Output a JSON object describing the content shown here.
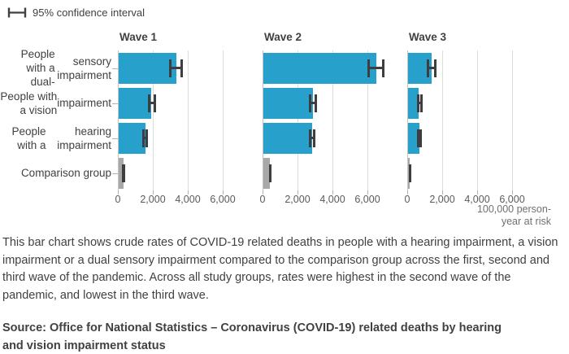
{
  "legend": {
    "label": "95% confidence interval"
  },
  "chart_data": {
    "type": "bar",
    "orientation": "horizontal",
    "title": "",
    "xlabel": "100,000 person-year at risk",
    "xlabel_lines": [
      "100,000 person-",
      "year at risk"
    ],
    "xlim": [
      0,
      7200
    ],
    "xticks": [
      0,
      2000,
      4000,
      6000
    ],
    "xtick_labels": [
      "0",
      "2,000",
      "4,000",
      "6,000"
    ],
    "grid": "vertical",
    "legend_entry": "95% confidence interval",
    "bar_color": "#27A0CC",
    "comparison_bar_color": "#A8A8A8",
    "error_bar_color": "#3E3E40",
    "categories": [
      "People with a dual-sensory impairment",
      "People with a vision impairment",
      "People with a hearing impairment",
      "Comparison group"
    ],
    "category_lines": [
      [
        "People with a dual-",
        "sensory impairment"
      ],
      [
        "People with a vision",
        "impairment"
      ],
      [
        "People with a",
        "hearing impairment"
      ],
      [
        "Comparison group"
      ]
    ],
    "panels": [
      {
        "title": "Wave 1",
        "values": [
          3340,
          1930,
          1570,
          340
        ],
        "ci_low": [
          2960,
          1770,
          1440,
          300
        ],
        "ci_high": [
          3680,
          2120,
          1690,
          385
        ]
      },
      {
        "title": "Wave 2",
        "values": [
          6500,
          2880,
          2840,
          440
        ],
        "ci_low": [
          6030,
          2700,
          2690,
          410
        ],
        "ci_high": [
          6920,
          3070,
          2990,
          470
        ]
      },
      {
        "title": "Wave 3",
        "values": [
          1400,
          670,
          700,
          140
        ],
        "ci_low": [
          1160,
          590,
          620,
          120
        ],
        "ci_high": [
          1630,
          850,
          780,
          165
        ]
      }
    ]
  },
  "caption": {
    "text": "This bar chart shows crude rates of COVID-19 related deaths in people with a hearing impairment, a vision impairment or a dual sensory impairment compared to the comparison group across the first, second and third wave of the pandemic. Across all study groups, rates were highest in the second wave of the pandemic, and lowest in the third wave."
  },
  "source": {
    "text": "Source: Office for National Statistics – Coronavirus (COVID-19) related deaths by hearing and vision impairment status"
  }
}
